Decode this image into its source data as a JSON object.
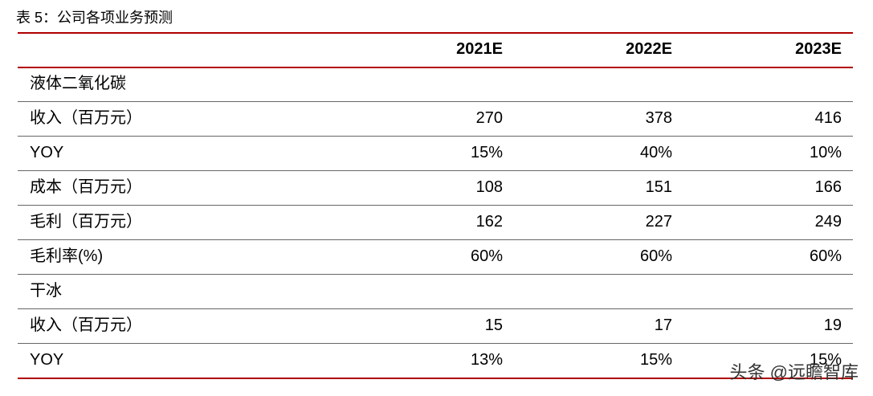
{
  "header": {
    "title": "表 5：公司各项业务预测"
  },
  "table": {
    "columns": [
      "2021E",
      "2022E",
      "2023E"
    ],
    "rows": [
      [
        "液体二氧化碳"
      ],
      [
        "收入（百万元）",
        "270",
        "378",
        "416"
      ],
      [
        "YOY",
        "15%",
        "40%",
        "10%"
      ],
      [
        "成本（百万元）",
        "108",
        "151",
        "166"
      ],
      [
        "毛利（百万元）",
        "162",
        "227",
        "249"
      ],
      [
        "毛利率(%)",
        "60%",
        "60%",
        "60%"
      ],
      [
        "干冰"
      ],
      [
        "收入（百万元）",
        "15",
        "17",
        "19"
      ],
      [
        "YOY",
        "13%",
        "15%",
        "15%"
      ]
    ]
  },
  "watermark": "头条 @远瞻智库"
}
